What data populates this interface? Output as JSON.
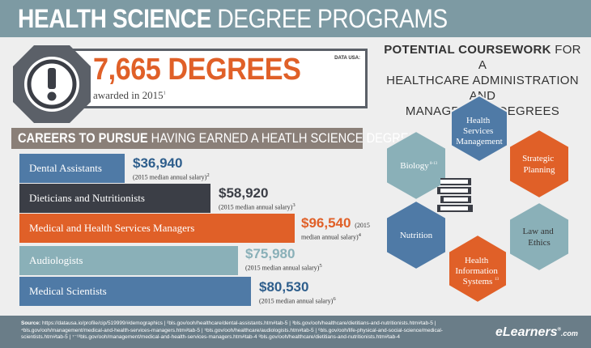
{
  "header": {
    "title_bold": "HEALTH SCIENCE",
    "title_light": " DEGREE PROGRAMS"
  },
  "stats": {
    "degrees_value": "7,665 DEGREES",
    "awarded_text": "awarded in 2015",
    "awarded_sup": "1",
    "source_label": "DATA USA:"
  },
  "careers": {
    "heading_bold": "CAREERS TO PURSUE",
    "heading_light": " HAVING EARNED A HEATLH SCIENCE DEGREE",
    "items": [
      {
        "label": "Dental Assistants",
        "salary": "$36,940",
        "note": "(2015 median annual salary)",
        "sup": "2",
        "color": "#4f7aa6",
        "salary_color": "#2e5e8c"
      },
      {
        "label": "Dieticians and Nutritionists",
        "salary": "$58,920",
        "note": "(2015 median annual salary)",
        "sup": "3",
        "color": "#3b3e46",
        "salary_color": "#3b3e46"
      },
      {
        "label": "Medical and Health Services Managers",
        "salary": "$96,540",
        "note_inline": "(2015",
        "note": "median annual salary)",
        "sup": "4",
        "color": "#e06028",
        "salary_color": "#e06028"
      },
      {
        "label": "Audiologists",
        "salary": "$75,980",
        "note": "(2015 median annual salary)",
        "sup": "5",
        "color": "#8ab0b8",
        "salary_color": "#8ab0b8"
      },
      {
        "label": "Medical Scientists",
        "salary": "$80,530",
        "note": "(2015 median annual salary)",
        "sup": "6",
        "color": "#4f7aa6",
        "salary_color": "#2e5e8c"
      }
    ]
  },
  "coursework": {
    "title_bold": "POTENTIAL COURSEWORK",
    "title_rest_1": " FOR A",
    "title_line2": "HEALTHCARE ADMINISTRATION AND",
    "title_line3": "MANAGEMENT DEGREES",
    "hexes": [
      {
        "label": "Health Services Management",
        "lines": [
          "Health",
          "Services",
          "Management"
        ],
        "color": "#4f7aa6"
      },
      {
        "label": "Strategic Planning",
        "lines": [
          "Strategic",
          "Planning"
        ],
        "color": "#e06028"
      },
      {
        "label": "Law and Ethics",
        "lines": [
          "Law and",
          "Ethics"
        ],
        "color": "#8ab0b8"
      },
      {
        "label": "Health Information Systems",
        "lines": [
          "Health",
          "Information",
          "Systems"
        ],
        "sup": "13",
        "color": "#e06028"
      },
      {
        "label": "Nutrition",
        "lines": [
          "Nutrition"
        ],
        "color": "#4f7aa6"
      },
      {
        "label": "Biology",
        "lines": [
          "Biology"
        ],
        "sup": "8-13",
        "color": "#8ab0b8"
      }
    ]
  },
  "footer": {
    "source_label": "Source:",
    "source_text": " https://datausa.io/profile/cip/519999/#demographics  |  ²bls.gov/ooh/healthcare/dental-assistants.htm#tab-5  |  ³bls.gov/ooh/healthcare/dietitians-and-nutritionists.htm#tab-5  |  ⁴bls.gov/ooh/management/medical-and-health-services-managers.htm#tab-5  |  ⁵bls.gov/ooh/healthcare/audiologists.htm#tab-5  |  ⁶bls.gov/ooh/life-physical-and-social-science/medical-scientists.htm#tab-5  |  ⁷⁻¹³bls.gov/ooh/management/medical-and-health-services-managers.htm#tab-4  ⁸bls.gov/ooh/healthcare/dietitians-and-nutritionists.htm#tab-4",
    "brand_main": "eLearners",
    "brand_reg": "®",
    "brand_com": ".com"
  }
}
